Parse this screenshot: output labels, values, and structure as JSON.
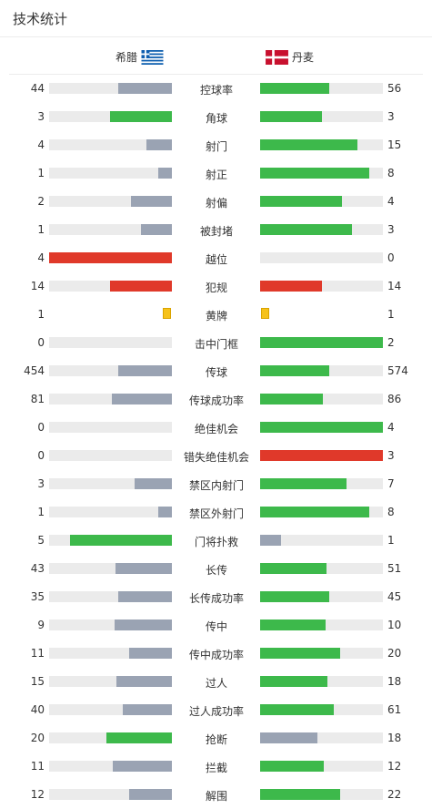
{
  "header": {
    "title": "技术统计"
  },
  "teams": {
    "home": "希腊",
    "away": "丹麦",
    "home_flag": "greece-flag-icon",
    "away_flag": "denmark-flag-icon"
  },
  "colors": {
    "gray": "#9aa3b3",
    "green": "#3db94b",
    "red": "#e0392a",
    "track": "#ebebeb",
    "yellow": "#f6c21a"
  },
  "stats": [
    {
      "label": "控球率",
      "home": "44",
      "away": "56",
      "home_pct": 0.44,
      "away_pct": 0.56,
      "home_color": "#9aa3b3",
      "away_color": "#3db94b"
    },
    {
      "label": "角球",
      "home": "3",
      "away": "3",
      "home_pct": 0.5,
      "away_pct": 0.5,
      "home_color": "#3db94b",
      "away_color": "#3db94b"
    },
    {
      "label": "射门",
      "home": "4",
      "away": "15",
      "home_pct": 0.21,
      "away_pct": 0.79,
      "home_color": "#9aa3b3",
      "away_color": "#3db94b"
    },
    {
      "label": "射正",
      "home": "1",
      "away": "8",
      "home_pct": 0.11,
      "away_pct": 0.89,
      "home_color": "#9aa3b3",
      "away_color": "#3db94b"
    },
    {
      "label": "射偏",
      "home": "2",
      "away": "4",
      "home_pct": 0.33,
      "away_pct": 0.67,
      "home_color": "#9aa3b3",
      "away_color": "#3db94b"
    },
    {
      "label": "被封堵",
      "home": "1",
      "away": "3",
      "home_pct": 0.25,
      "away_pct": 0.75,
      "home_color": "#9aa3b3",
      "away_color": "#3db94b"
    },
    {
      "label": "越位",
      "home": "4",
      "away": "0",
      "home_pct": 1.0,
      "away_pct": 0.0,
      "home_color": "#e0392a",
      "away_color": "#e0392a"
    },
    {
      "label": "犯规",
      "home": "14",
      "away": "14",
      "home_pct": 0.5,
      "away_pct": 0.5,
      "home_color": "#e0392a",
      "away_color": "#e0392a"
    },
    {
      "label": "黄牌",
      "home": "1",
      "away": "1",
      "card": true
    },
    {
      "label": "击中门框",
      "home": "0",
      "away": "2",
      "home_pct": 0.0,
      "away_pct": 1.0,
      "home_color": "#9aa3b3",
      "away_color": "#3db94b"
    },
    {
      "label": "传球",
      "home": "454",
      "away": "574",
      "home_pct": 0.44,
      "away_pct": 0.56,
      "home_color": "#9aa3b3",
      "away_color": "#3db94b"
    },
    {
      "label": "传球成功率",
      "home": "81",
      "away": "86",
      "home_pct": 0.49,
      "away_pct": 0.51,
      "home_color": "#9aa3b3",
      "away_color": "#3db94b"
    },
    {
      "label": "绝佳机会",
      "home": "0",
      "away": "4",
      "home_pct": 0.0,
      "away_pct": 1.0,
      "home_color": "#9aa3b3",
      "away_color": "#3db94b"
    },
    {
      "label": "错失绝佳机会",
      "home": "0",
      "away": "3",
      "home_pct": 0.0,
      "away_pct": 1.0,
      "home_color": "#e0392a",
      "away_color": "#e0392a"
    },
    {
      "label": "禁区内射门",
      "home": "3",
      "away": "7",
      "home_pct": 0.3,
      "away_pct": 0.7,
      "home_color": "#9aa3b3",
      "away_color": "#3db94b"
    },
    {
      "label": "禁区外射门",
      "home": "1",
      "away": "8",
      "home_pct": 0.11,
      "away_pct": 0.89,
      "home_color": "#9aa3b3",
      "away_color": "#3db94b"
    },
    {
      "label": "门将扑救",
      "home": "5",
      "away": "1",
      "home_pct": 0.83,
      "away_pct": 0.17,
      "home_color": "#3db94b",
      "away_color": "#9aa3b3"
    },
    {
      "label": "长传",
      "home": "43",
      "away": "51",
      "home_pct": 0.46,
      "away_pct": 0.54,
      "home_color": "#9aa3b3",
      "away_color": "#3db94b"
    },
    {
      "label": "长传成功率",
      "home": "35",
      "away": "45",
      "home_pct": 0.44,
      "away_pct": 0.56,
      "home_color": "#9aa3b3",
      "away_color": "#3db94b"
    },
    {
      "label": "传中",
      "home": "9",
      "away": "10",
      "home_pct": 0.47,
      "away_pct": 0.53,
      "home_color": "#9aa3b3",
      "away_color": "#3db94b"
    },
    {
      "label": "传中成功率",
      "home": "11",
      "away": "20",
      "home_pct": 0.35,
      "away_pct": 0.65,
      "home_color": "#9aa3b3",
      "away_color": "#3db94b"
    },
    {
      "label": "过人",
      "home": "15",
      "away": "18",
      "home_pct": 0.45,
      "away_pct": 0.55,
      "home_color": "#9aa3b3",
      "away_color": "#3db94b"
    },
    {
      "label": "过人成功率",
      "home": "40",
      "away": "61",
      "home_pct": 0.4,
      "away_pct": 0.6,
      "home_color": "#9aa3b3",
      "away_color": "#3db94b"
    },
    {
      "label": "抢断",
      "home": "20",
      "away": "18",
      "home_pct": 0.53,
      "away_pct": 0.47,
      "home_color": "#3db94b",
      "away_color": "#9aa3b3"
    },
    {
      "label": "拦截",
      "home": "11",
      "away": "12",
      "home_pct": 0.48,
      "away_pct": 0.52,
      "home_color": "#9aa3b3",
      "away_color": "#3db94b"
    },
    {
      "label": "解围",
      "home": "12",
      "away": "22",
      "home_pct": 0.35,
      "away_pct": 0.65,
      "home_color": "#9aa3b3",
      "away_color": "#3db94b"
    }
  ]
}
